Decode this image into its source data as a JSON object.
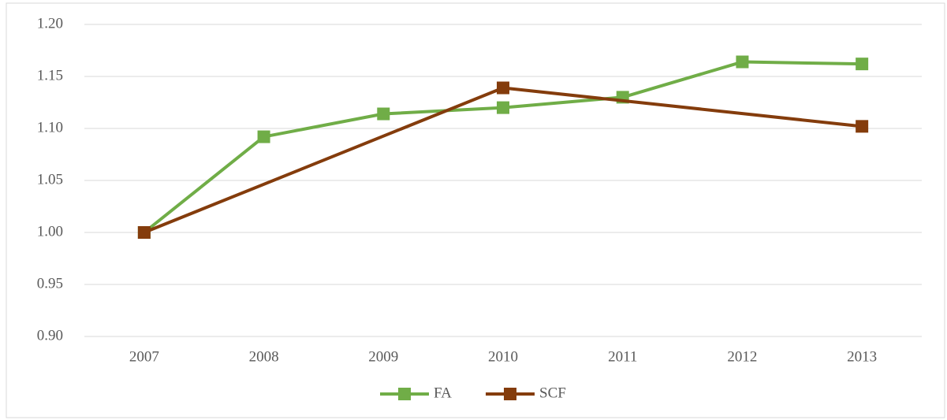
{
  "chart_data": {
    "type": "line",
    "x": [
      2007,
      2008,
      2009,
      2010,
      2011,
      2012,
      2013
    ],
    "xlim": [
      2006.5,
      2013.5
    ],
    "xticks": [
      2007,
      2008,
      2009,
      2010,
      2011,
      2012,
      2013
    ],
    "ylim": [
      0.9,
      1.2
    ],
    "yticks": [
      {
        "value": 0.9,
        "label": "0.90"
      },
      {
        "value": 0.95,
        "label": "0.95"
      },
      {
        "value": 1.0,
        "label": "1.00"
      },
      {
        "value": 1.05,
        "label": "1.05"
      },
      {
        "value": 1.1,
        "label": "1.10"
      },
      {
        "value": 1.15,
        "label": "1.15"
      },
      {
        "value": 1.2,
        "label": "1.20"
      }
    ],
    "grid": true,
    "legend": "bottom",
    "series": [
      {
        "name": "FA",
        "color": "#70ad47",
        "x": [
          2007,
          2008,
          2009,
          2010,
          2011,
          2012,
          2013
        ],
        "values": [
          1.0,
          1.092,
          1.114,
          1.12,
          1.13,
          1.164,
          1.162
        ]
      },
      {
        "name": "SCF",
        "color": "#843c0c",
        "x": [
          2007,
          2010,
          2013
        ],
        "values": [
          1.0,
          1.139,
          1.102
        ]
      }
    ]
  }
}
